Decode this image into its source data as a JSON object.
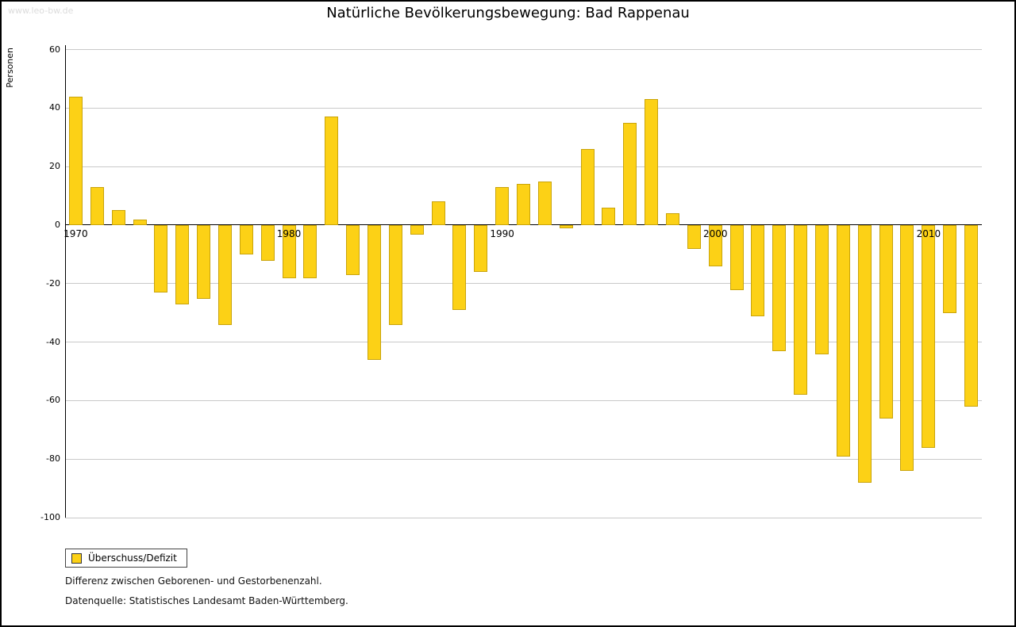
{
  "watermark": "www.leo-bw.de",
  "title": "Natürliche Bevölkerungsbewegung: Bad Rappenau",
  "y_axis_label": "Personen",
  "legend": {
    "label": "Überschuss/Defizit"
  },
  "notes": {
    "line1": "Differenz zwischen Geborenen- und Gestorbenenzahl.",
    "line2": "Datenquelle: Statistisches Landesamt Baden-Württemberg."
  },
  "colors": {
    "bar_fill": "#FCD116",
    "bar_border": "#C9A40B",
    "grid": "#C9C9C9",
    "axis": "#000000",
    "watermark": "#DCDCDC"
  },
  "chart_data": {
    "type": "bar",
    "title": "Natürliche Bevölkerungsbewegung: Bad Rappenau",
    "xlabel": "",
    "ylabel": "Personen",
    "ylim": [
      -100,
      60
    ],
    "yticks": [
      60,
      40,
      20,
      0,
      -20,
      -40,
      -60,
      -80,
      -100
    ],
    "xticks": [
      1970,
      1980,
      1990,
      2000,
      2010
    ],
    "grid": true,
    "legend_position": "bottom-left",
    "series_name": "Überschuss/Defizit",
    "categories": [
      1970,
      1971,
      1972,
      1973,
      1974,
      1975,
      1976,
      1977,
      1978,
      1979,
      1980,
      1981,
      1982,
      1983,
      1984,
      1985,
      1986,
      1987,
      1988,
      1989,
      1990,
      1991,
      1992,
      1993,
      1994,
      1995,
      1996,
      1997,
      1998,
      1999,
      2000,
      2001,
      2002,
      2003,
      2004,
      2005,
      2006,
      2007,
      2008,
      2009,
      2010,
      2011,
      2012
    ],
    "values": [
      44,
      13,
      5,
      2,
      -23,
      -27,
      -25,
      -34,
      -10,
      -12,
      -18,
      -18,
      37,
      -17,
      -46,
      -34,
      -3,
      8,
      -29,
      -16,
      13,
      14,
      15,
      -1,
      26,
      6,
      35,
      43,
      4,
      -8,
      -14,
      -22,
      -31,
      -43,
      -58,
      -44,
      -79,
      -88,
      -66,
      -84,
      -76,
      -30,
      -62
    ]
  }
}
